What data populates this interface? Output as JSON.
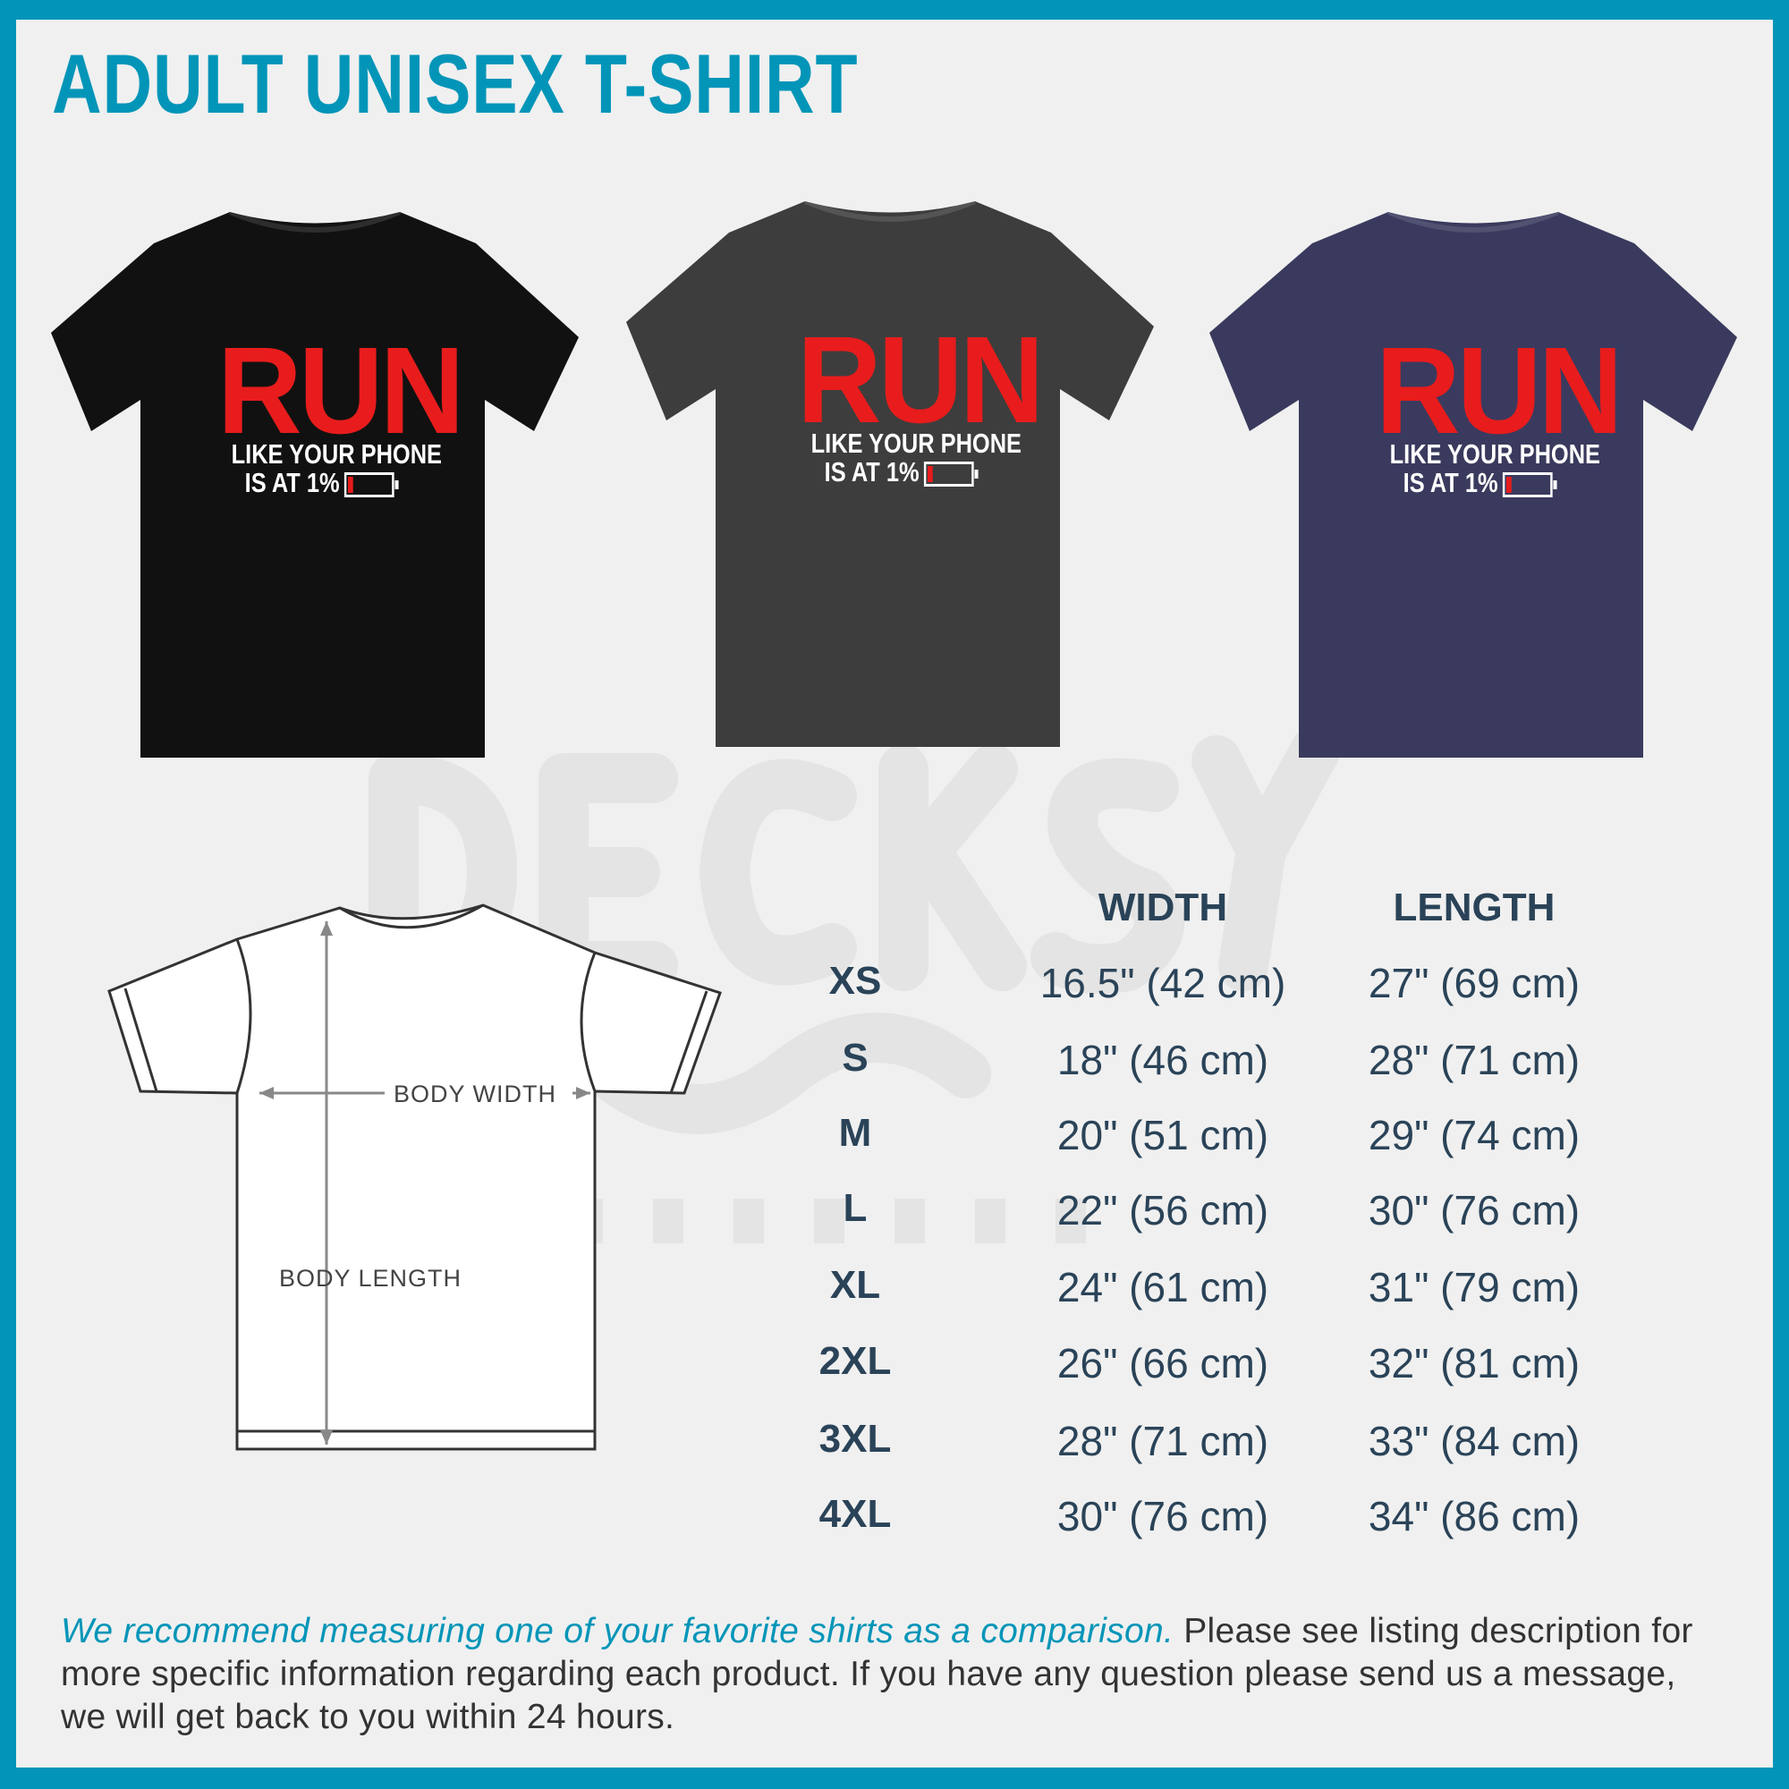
{
  "title": "ADULT UNISEX T-SHIRT",
  "watermark": {
    "brand": "DECKSY",
    "sub": "DESIGNS"
  },
  "colors": {
    "accent": "#0295b8",
    "text": "#2a4358",
    "print_red": "#e81c1c"
  },
  "shirts": [
    {
      "color_name": "black",
      "hex": "#111111"
    },
    {
      "color_name": "dark grey heather",
      "hex": "#3d3d3d"
    },
    {
      "color_name": "heather navy",
      "hex": "#3a3a5e"
    }
  ],
  "print": {
    "line1": "RUN",
    "line2": "LIKE YOUR PHONE",
    "line3": "IS AT 1%",
    "battery_level_percent": 1
  },
  "diagram": {
    "width_label": "BODY WIDTH",
    "length_label": "BODY LENGTH"
  },
  "table": {
    "headers": [
      "",
      "WIDTH",
      "LENGTH"
    ],
    "rows": [
      {
        "size": "XS",
        "width": "16.5\" (42 cm)",
        "length": "27\" (69 cm)"
      },
      {
        "size": "S",
        "width": "18\" (46 cm)",
        "length": "28\" (71 cm)"
      },
      {
        "size": "M",
        "width": "20\" (51 cm)",
        "length": "29\" (74 cm)"
      },
      {
        "size": "L",
        "width": "22\" (56 cm)",
        "length": "30\" (76 cm)"
      },
      {
        "size": "XL",
        "width": "24\" (61 cm)",
        "length": "31\" (79 cm)"
      },
      {
        "size": "2XL",
        "width": "26\" (66 cm)",
        "length": "32\" (81 cm)"
      },
      {
        "size": "3XL",
        "width": "28\" (71 cm)",
        "length": "33\" (84 cm)"
      },
      {
        "size": "4XL",
        "width": "30\" (76 cm)",
        "length": "34\" (86 cm)"
      }
    ]
  },
  "footer": {
    "highlight": "We recommend measuring one of your favorite shirts as a comparison.",
    "text": " Please see listing description for more specific information regarding each product. If you have any question please send us a message, we will get back to you within 24 hours."
  }
}
